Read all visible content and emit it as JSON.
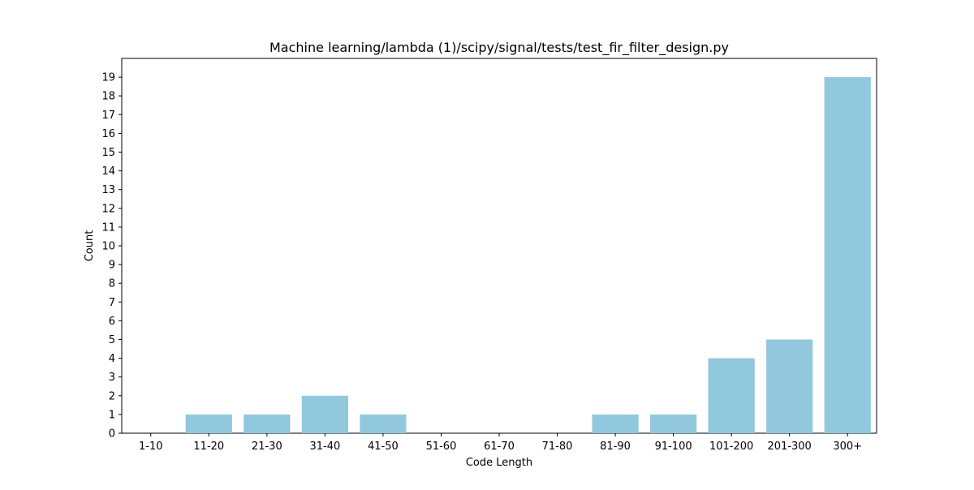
{
  "chart_data": {
    "type": "bar",
    "title": "Machine learning/lambda (1)/scipy/signal/tests/test_fir_filter_design.py",
    "xlabel": "Code Length",
    "ylabel": "Count",
    "categories": [
      "1-10",
      "11-20",
      "21-30",
      "31-40",
      "41-50",
      "51-60",
      "61-70",
      "71-80",
      "81-90",
      "91-100",
      "101-200",
      "201-300",
      "300+"
    ],
    "values": [
      0,
      1,
      1,
      2,
      1,
      0,
      0,
      0,
      1,
      1,
      4,
      5,
      19
    ],
    "ylim": [
      0,
      20
    ],
    "yticks": [
      0,
      1,
      2,
      3,
      4,
      5,
      6,
      7,
      8,
      9,
      10,
      11,
      12,
      13,
      14,
      15,
      16,
      17,
      18,
      19
    ],
    "grid": false,
    "bar_color": "#92c8de",
    "legend": "none"
  }
}
